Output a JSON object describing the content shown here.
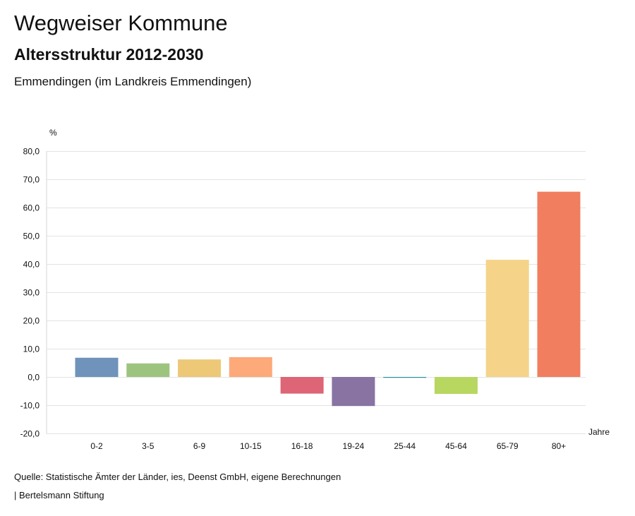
{
  "header": {
    "title": "Wegweiser Kommune",
    "subtitle": "Altersstruktur 2012-2030",
    "region": "Emmendingen (im Landkreis Emmendingen)"
  },
  "chart_data": {
    "type": "bar",
    "title": "Altersstruktur 2012-2030",
    "ylabel": "%",
    "xlabel": "Jahre",
    "ylim": [
      -20,
      80
    ],
    "yticks": [
      "80,0",
      "70,0",
      "60,0",
      "50,0",
      "40,0",
      "30,0",
      "20,0",
      "10,0",
      "0,0",
      "-10,0",
      "-20,0"
    ],
    "ytick_values": [
      80,
      70,
      60,
      50,
      40,
      30,
      20,
      10,
      0,
      -10,
      -20
    ],
    "grid": true,
    "categories": [
      "0-2",
      "3-5",
      "6-9",
      "10-15",
      "16-18",
      "19-24",
      "25-44",
      "45-64",
      "65-79",
      "80+"
    ],
    "values": [
      6.8,
      4.8,
      6.2,
      7.0,
      -5.9,
      -10.3,
      -0.3,
      -6.0,
      41.5,
      65.6
    ],
    "colors": [
      "#6f93bb",
      "#9dc47f",
      "#ecc877",
      "#fda97a",
      "#dd6575",
      "#8873a3",
      "#2b8f9a",
      "#b7d760",
      "#f5d489",
      "#f07e5f"
    ]
  },
  "footer": {
    "source": "Quelle: Statistische Ämter der Länder, ies, Deenst GmbH, eigene Berechnungen",
    "publisher": "| Bertelsmann Stiftung"
  }
}
